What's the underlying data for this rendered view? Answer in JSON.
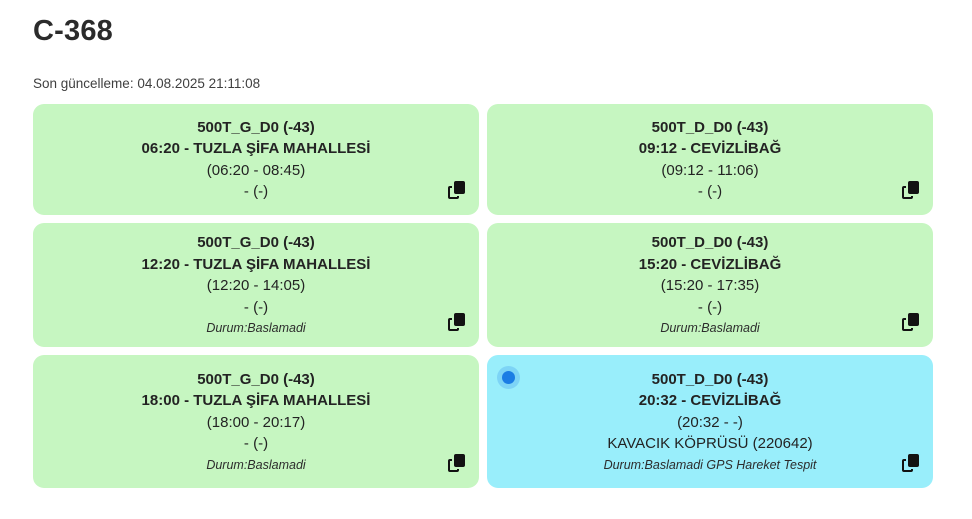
{
  "header": {
    "title": "C-368",
    "last_update": "Son güncelleme: 04.08.2025 21:11:08"
  },
  "colors": {
    "card_green": "#c6f6c1",
    "card_active_cyan": "#99eefb",
    "active_dot_blue": "#1b7de4",
    "text_dark": "#232323"
  },
  "icons": {
    "copy": "copy-icon",
    "active_indicator": "active-dot-icon"
  },
  "cards": [
    {
      "code": "500T_G_D0 (-43)",
      "departure": "06:20 - TUZLA ŞİFA MAHALLESİ",
      "time_window": "(06:20 - 08:45)",
      "note": "- (-)",
      "status": "",
      "highlighted": false
    },
    {
      "code": "500T_D_D0 (-43)",
      "departure": "09:12 - CEVİZLİBAĞ",
      "time_window": "(09:12 - 11:06)",
      "note": "- (-)",
      "status": "",
      "highlighted": false
    },
    {
      "code": "500T_G_D0 (-43)",
      "departure": "12:20 - TUZLA ŞİFA MAHALLESİ",
      "time_window": "(12:20 - 14:05)",
      "note": "- (-)",
      "status": "Durum:Baslamadi",
      "highlighted": false
    },
    {
      "code": "500T_D_D0 (-43)",
      "departure": "15:20 - CEVİZLİBAĞ",
      "time_window": "(15:20 - 17:35)",
      "note": "- (-)",
      "status": "Durum:Baslamadi",
      "highlighted": false
    },
    {
      "code": "500T_G_D0 (-43)",
      "departure": "18:00 - TUZLA ŞİFA MAHALLESİ",
      "time_window": "(18:00 - 20:17)",
      "note": "- (-)",
      "status": "Durum:Baslamadi",
      "highlighted": false
    },
    {
      "code": "500T_D_D0 (-43)",
      "departure": "20:32 - CEVİZLİBAĞ",
      "time_window": "(20:32 - -)",
      "note": "KAVACIK KÖPRÜSÜ (220642)",
      "status": "Durum:Baslamadi GPS Hareket Tespit",
      "highlighted": true
    }
  ]
}
